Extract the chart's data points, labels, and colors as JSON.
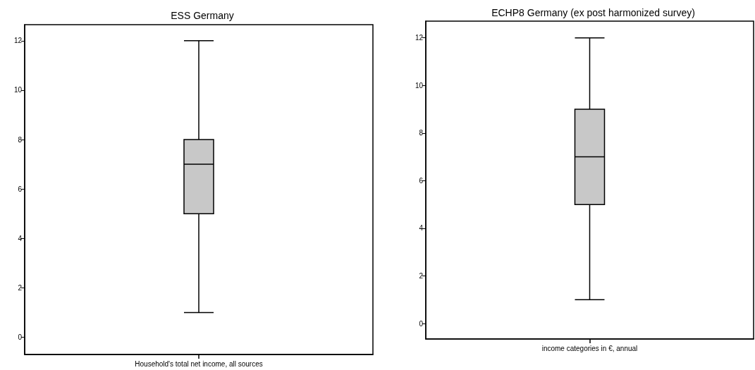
{
  "chart_data": [
    {
      "type": "box",
      "title": "ESS Germany",
      "categories": [
        "Household's total net income, all sources"
      ],
      "color": "#c8c8c8",
      "boxes": [
        {
          "low": 1,
          "q1": 5,
          "median": 7,
          "q3": 8,
          "high": 12
        }
      ],
      "ylim": [
        -0.7,
        12.65
      ],
      "yticks": [
        0,
        2,
        4,
        6,
        8,
        10,
        12
      ],
      "grid": false
    },
    {
      "type": "box",
      "title": "ECHP8 Germany (ex post harmonized survey)",
      "categories": [
        "income categories in €, annual"
      ],
      "color": "#c8c8c8",
      "boxes": [
        {
          "low": 1,
          "q1": 5,
          "median": 7,
          "q3": 9,
          "high": 12
        }
      ],
      "ylim": [
        -0.65,
        12.7
      ],
      "yticks": [
        0,
        2,
        4,
        6,
        8,
        10,
        12
      ],
      "grid": false
    }
  ]
}
